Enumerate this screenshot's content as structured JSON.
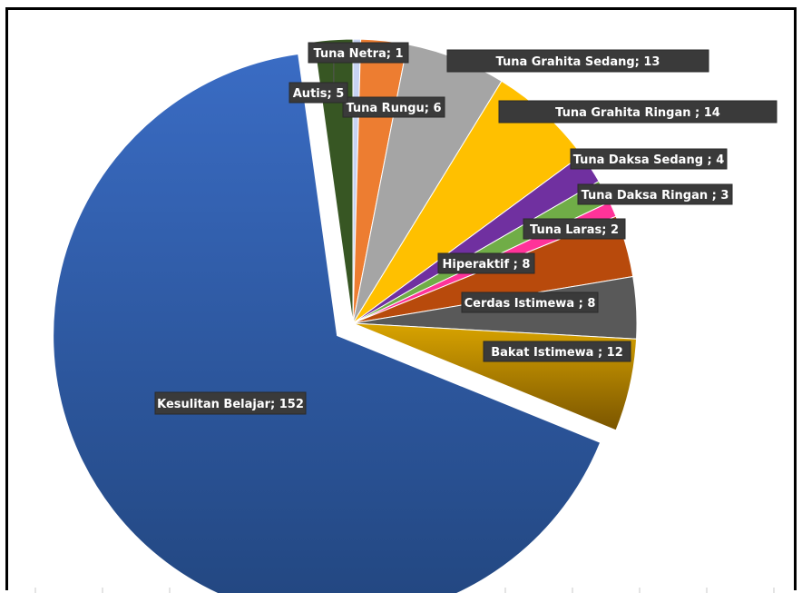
{
  "chart_data": {
    "type": "pie",
    "title": "",
    "slices": [
      {
        "label": "Tuna Netra; 1",
        "name": "Tuna Netra",
        "value": 1,
        "color": "#c7d3f2",
        "exploded": false
      },
      {
        "label": "Tuna Rungu; 6",
        "name": "Tuna Rungu",
        "value": 6,
        "color": "#ed7d31",
        "exploded": false
      },
      {
        "label": "Tuna Grahita Sedang; 13",
        "name": "Tuna Grahita Sedang",
        "value": 13,
        "color": "#a5a5a5",
        "exploded": false
      },
      {
        "label": "Tuna Grahita Ringan ; 14",
        "name": "Tuna Grahita Ringan",
        "value": 14,
        "color": "#ffc000",
        "exploded": false
      },
      {
        "label": "Tuna Daksa Sedang ; 4",
        "name": "Tuna Daksa Sedang",
        "value": 4,
        "color": "#7030a0",
        "exploded": false
      },
      {
        "label": "Tuna Daksa Ringan ; 3",
        "name": "Tuna Daksa Ringan",
        "value": 3,
        "color": "#70ad47",
        "exploded": false
      },
      {
        "label": "Tuna Laras; 2",
        "name": "Tuna Laras",
        "value": 2,
        "color": "#ff3399",
        "exploded": false
      },
      {
        "label": "Hiperaktif ; 8",
        "name": "Hiperaktif",
        "value": 8,
        "color": "#b84a0c",
        "exploded": false
      },
      {
        "label": "Cerdas Istimewa ; 8",
        "name": "Cerdas Istimewa",
        "value": 8,
        "color": "#595959",
        "exploded": false
      },
      {
        "label": "Bakat Istimewa ; 12",
        "name": "Bakat Istimewa",
        "value": 12,
        "color": "#bf8f00",
        "exploded": false
      },
      {
        "label": "Kesulitan Belajar; 152",
        "name": "Kesulitan Belajar",
        "value": 152,
        "color": "#2e5baa",
        "exploded": true
      },
      {
        "label": "Autis; 5",
        "name": "Autis",
        "value": 5,
        "color": "#375623",
        "exploded": false
      }
    ],
    "legend": "none",
    "data_labels": true
  }
}
